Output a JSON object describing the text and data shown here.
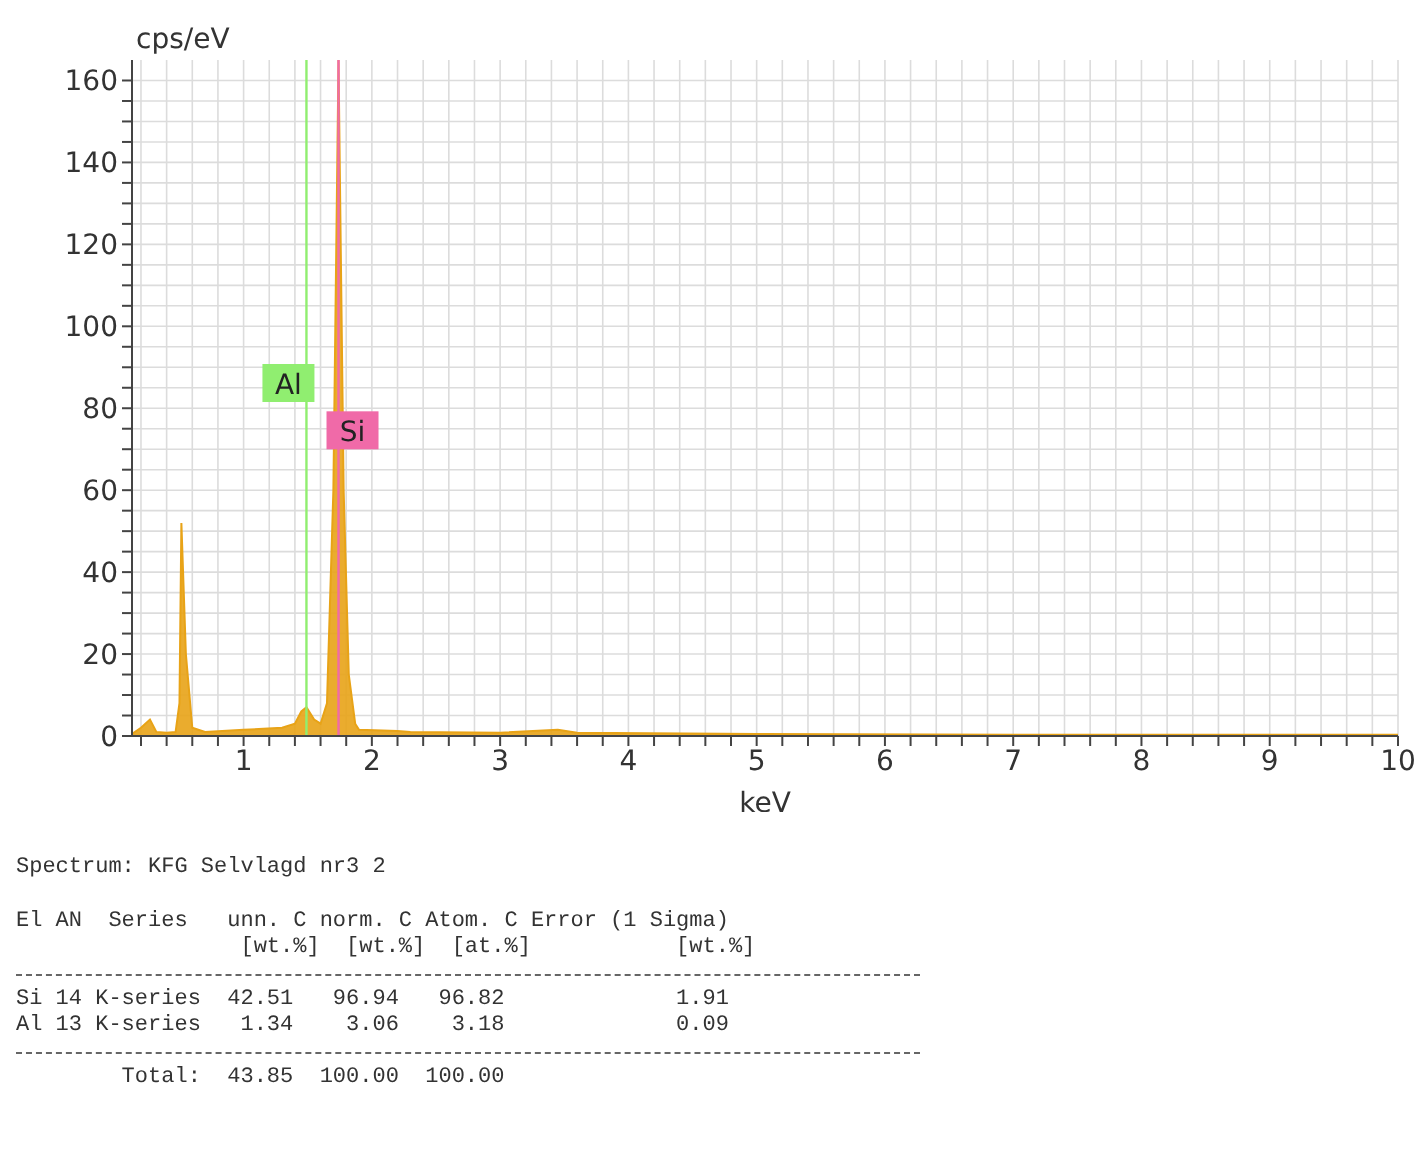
{
  "chart_data": {
    "type": "area",
    "xlabel": "keV",
    "ylabel": "cps/eV",
    "x": [
      0.13,
      0.2,
      0.27,
      0.32,
      0.4,
      0.47,
      0.5,
      0.515,
      0.55,
      0.6,
      0.7,
      1.0,
      1.3,
      1.4,
      1.45,
      1.49,
      1.55,
      1.6,
      1.65,
      1.7,
      1.74,
      1.78,
      1.82,
      1.87,
      1.9,
      2.2,
      2.3,
      3.0,
      3.45,
      3.6,
      5.0,
      7.0,
      10.0
    ],
    "series": [
      {
        "color": "#e8a317",
        "values": [
          0.5,
          2,
          4,
          1,
          0.8,
          1,
          8,
          52,
          20,
          2,
          1,
          1.5,
          2,
          3,
          6,
          7,
          4,
          3,
          8,
          60,
          165,
          60,
          15,
          3,
          1.5,
          1.2,
          1,
          0.8,
          1.5,
          0.8,
          0.5,
          0.3,
          0.3
        ]
      }
    ],
    "xlim": [
      0.13,
      10
    ],
    "xticks": [
      {
        "value": 0.2,
        "label": null
      },
      {
        "value": 0.4,
        "label": null
      },
      {
        "value": 0.6,
        "label": null
      },
      {
        "value": 0.8,
        "label": null
      },
      1,
      {
        "value": 1.2,
        "label": null
      },
      {
        "value": 1.4,
        "label": null
      },
      {
        "value": 1.6,
        "label": null
      },
      {
        "value": 1.8,
        "label": null
      },
      2,
      {
        "value": 2.2,
        "label": null
      },
      {
        "value": 2.4,
        "label": null
      },
      {
        "value": 2.6,
        "label": null
      },
      {
        "value": 2.8,
        "label": null
      },
      3,
      {
        "value": 3.2,
        "label": null
      },
      {
        "value": 3.4,
        "label": null
      },
      {
        "value": 3.6,
        "label": null
      },
      {
        "value": 3.8,
        "label": null
      },
      4,
      {
        "value": 4.2,
        "label": null
      },
      {
        "value": 4.4,
        "label": null
      },
      {
        "value": 4.6,
        "label": null
      },
      {
        "value": 4.8,
        "label": null
      },
      5,
      {
        "value": 5.2,
        "label": null
      },
      {
        "value": 5.4,
        "label": null
      },
      {
        "value": 5.6,
        "label": null
      },
      {
        "value": 5.8,
        "label": null
      },
      6,
      {
        "value": 6.2,
        "label": null
      },
      {
        "value": 6.4,
        "label": null
      },
      {
        "value": 6.6,
        "label": null
      },
      {
        "value": 6.8,
        "label": null
      },
      7,
      {
        "value": 7.2,
        "label": null
      },
      {
        "value": 7.4,
        "label": null
      },
      {
        "value": 7.6,
        "label": null
      },
      {
        "value": 7.8,
        "label": null
      },
      8,
      {
        "value": 8.2,
        "label": null
      },
      {
        "value": 8.4,
        "label": null
      },
      {
        "value": 8.6,
        "label": null
      },
      {
        "value": 8.8,
        "label": null
      },
      9,
      {
        "value": 9.2,
        "label": null
      },
      {
        "value": 9.4,
        "label": null
      },
      {
        "value": 9.6,
        "label": null
      },
      {
        "value": 9.8,
        "label": null
      },
      10
    ],
    "ylim": [
      0,
      165
    ],
    "yticks": [
      0,
      {
        "value": 5,
        "label": null
      },
      {
        "value": 10,
        "label": null
      },
      {
        "value": 15,
        "label": null
      },
      20,
      {
        "value": 25,
        "label": null
      },
      {
        "value": 30,
        "label": null
      },
      {
        "value": 35,
        "label": null
      },
      40,
      {
        "value": 45,
        "label": null
      },
      {
        "value": 50,
        "label": null
      },
      {
        "value": 55,
        "label": null
      },
      60,
      {
        "value": 65,
        "label": null
      },
      {
        "value": 70,
        "label": null
      },
      {
        "value": 75,
        "label": null
      },
      80,
      {
        "value": 85,
        "label": null
      },
      {
        "value": 90,
        "label": null
      },
      {
        "value": 95,
        "label": null
      },
      100,
      {
        "value": 105,
        "label": null
      },
      {
        "value": 110,
        "label": null
      },
      {
        "value": 115,
        "label": null
      },
      120,
      {
        "value": 125,
        "label": null
      },
      {
        "value": 130,
        "label": null
      },
      {
        "value": 135,
        "label": null
      },
      140,
      {
        "value": 145,
        "label": null
      },
      {
        "value": 150,
        "label": null
      },
      {
        "value": 155,
        "label": null
      },
      160
    ],
    "grid": true,
    "ref_lines": [
      {
        "axis": "x",
        "value": 1.49,
        "label": "Al",
        "color": "#90ee70"
      },
      {
        "axis": "x",
        "value": 1.74,
        "label": "Si",
        "color": "#f06aa8"
      }
    ],
    "annotations": [
      "Spectrum: KFG Selvlagd nr3 2",
      "El AN  Series   unn. C norm. C Atom. C Error (1 Sigma)",
      "                 [wt.%]  [wt.%]  [at.%]           [wt.%]",
      "Si 14 K-series  42.51   96.94   96.82             1.91",
      "Al 13 K-series   1.34    3.06    3.18             0.09",
      "        Total:  43.85  100.00  100.00"
    ]
  }
}
